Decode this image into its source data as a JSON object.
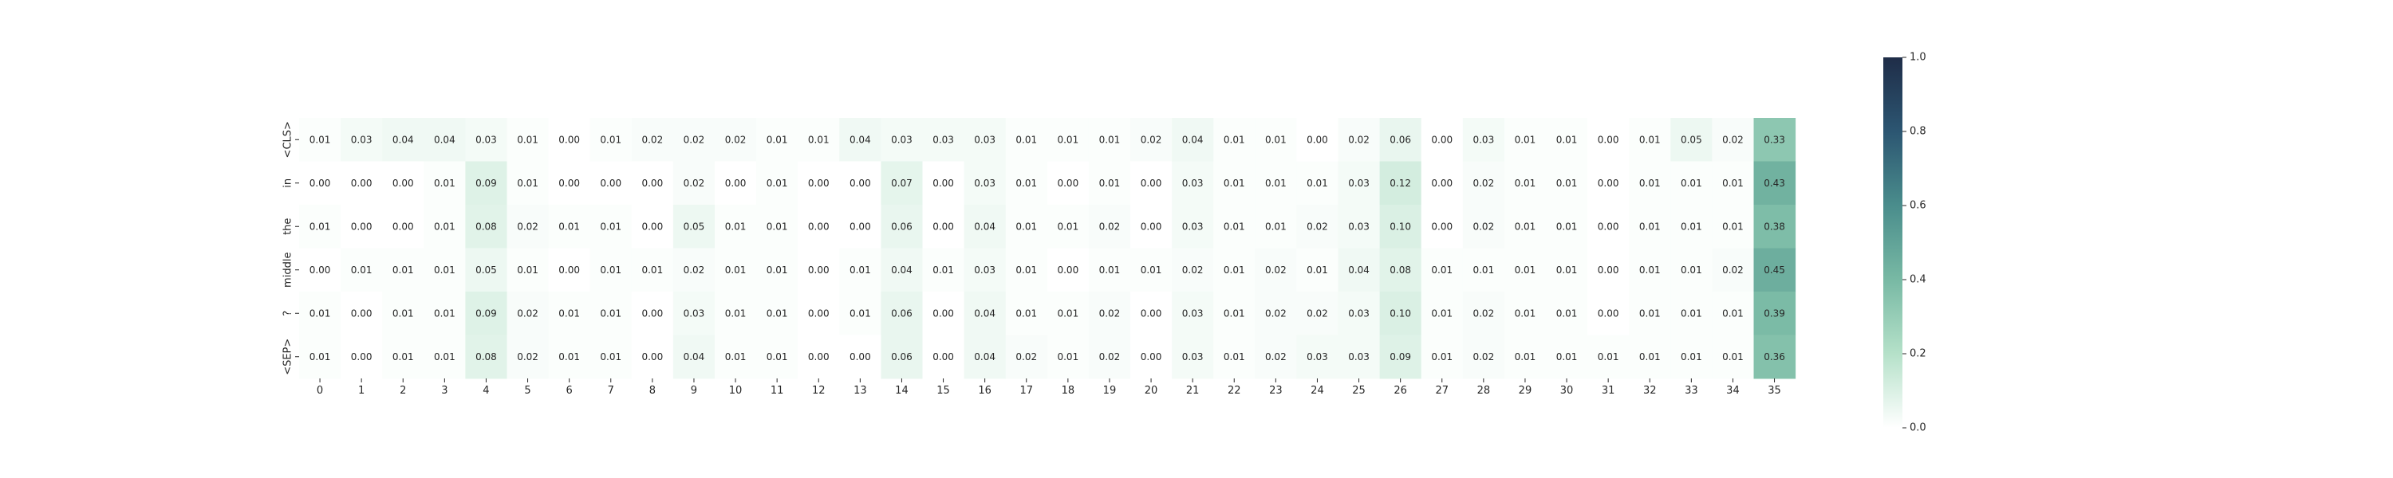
{
  "chart_data": {
    "type": "heatmap",
    "title": "",
    "xlabel": "",
    "ylabel": "",
    "x_tick_labels": [
      "0",
      "1",
      "2",
      "3",
      "4",
      "5",
      "6",
      "7",
      "8",
      "9",
      "10",
      "11",
      "12",
      "13",
      "14",
      "15",
      "16",
      "17",
      "18",
      "19",
      "20",
      "21",
      "22",
      "23",
      "24",
      "25",
      "26",
      "27",
      "28",
      "29",
      "30",
      "31",
      "32",
      "33",
      "34",
      "35"
    ],
    "y_tick_labels": [
      "<CLS>",
      "in",
      "the",
      "middle",
      "?",
      "<SEP>"
    ],
    "values": [
      [
        0.01,
        0.03,
        0.04,
        0.04,
        0.03,
        0.01,
        0.0,
        0.01,
        0.02,
        0.02,
        0.02,
        0.01,
        0.01,
        0.04,
        0.03,
        0.03,
        0.03,
        0.01,
        0.01,
        0.01,
        0.02,
        0.04,
        0.01,
        0.01,
        0.0,
        0.02,
        0.06,
        0.0,
        0.03,
        0.01,
        0.01,
        0.0,
        0.01,
        0.05,
        0.02,
        0.33
      ],
      [
        0.0,
        0.0,
        0.0,
        0.01,
        0.09,
        0.01,
        0.0,
        0.0,
        0.0,
        0.02,
        0.0,
        0.01,
        0.0,
        0.0,
        0.07,
        0.0,
        0.03,
        0.01,
        0.0,
        0.01,
        0.0,
        0.03,
        0.01,
        0.01,
        0.01,
        0.03,
        0.12,
        0.0,
        0.02,
        0.01,
        0.01,
        0.0,
        0.01,
        0.01,
        0.01,
        0.43
      ],
      [
        0.01,
        0.0,
        0.0,
        0.01,
        0.08,
        0.02,
        0.01,
        0.01,
        0.0,
        0.05,
        0.01,
        0.01,
        0.0,
        0.0,
        0.06,
        0.0,
        0.04,
        0.01,
        0.01,
        0.02,
        0.0,
        0.03,
        0.01,
        0.01,
        0.02,
        0.03,
        0.1,
        0.0,
        0.02,
        0.01,
        0.01,
        0.0,
        0.01,
        0.01,
        0.01,
        0.38
      ],
      [
        0.0,
        0.01,
        0.01,
        0.01,
        0.05,
        0.01,
        0.0,
        0.01,
        0.01,
        0.02,
        0.01,
        0.01,
        0.0,
        0.01,
        0.04,
        0.01,
        0.03,
        0.01,
        0.0,
        0.01,
        0.01,
        0.02,
        0.01,
        0.02,
        0.01,
        0.04,
        0.08,
        0.01,
        0.01,
        0.01,
        0.01,
        0.0,
        0.01,
        0.01,
        0.02,
        0.45
      ],
      [
        0.01,
        0.0,
        0.01,
        0.01,
        0.09,
        0.02,
        0.01,
        0.01,
        0.0,
        0.03,
        0.01,
        0.01,
        0.0,
        0.01,
        0.06,
        0.0,
        0.04,
        0.01,
        0.01,
        0.02,
        0.0,
        0.03,
        0.01,
        0.02,
        0.02,
        0.03,
        0.1,
        0.01,
        0.02,
        0.01,
        0.01,
        0.0,
        0.01,
        0.01,
        0.01,
        0.39
      ],
      [
        0.01,
        0.0,
        0.01,
        0.01,
        0.08,
        0.02,
        0.01,
        0.01,
        0.0,
        0.04,
        0.01,
        0.01,
        0.0,
        0.0,
        0.06,
        0.0,
        0.04,
        0.02,
        0.01,
        0.02,
        0.0,
        0.03,
        0.01,
        0.02,
        0.03,
        0.03,
        0.09,
        0.01,
        0.02,
        0.01,
        0.01,
        0.01,
        0.01,
        0.01,
        0.01,
        0.36
      ]
    ],
    "value_range": [
      0.0,
      1.0
    ],
    "colorbar": {
      "ticks": [
        0.0,
        0.2,
        0.4,
        0.6,
        0.8,
        1.0
      ],
      "tick_labels": [
        "0.0",
        "0.2",
        "0.4",
        "0.6",
        "0.8",
        "1.0"
      ]
    },
    "colormap": [
      "#ffffff",
      "#b5e1c9",
      "#78b9a4",
      "#4a8d8c",
      "#2c5672",
      "#1f2d48"
    ],
    "annotated": true,
    "grid": false
  }
}
